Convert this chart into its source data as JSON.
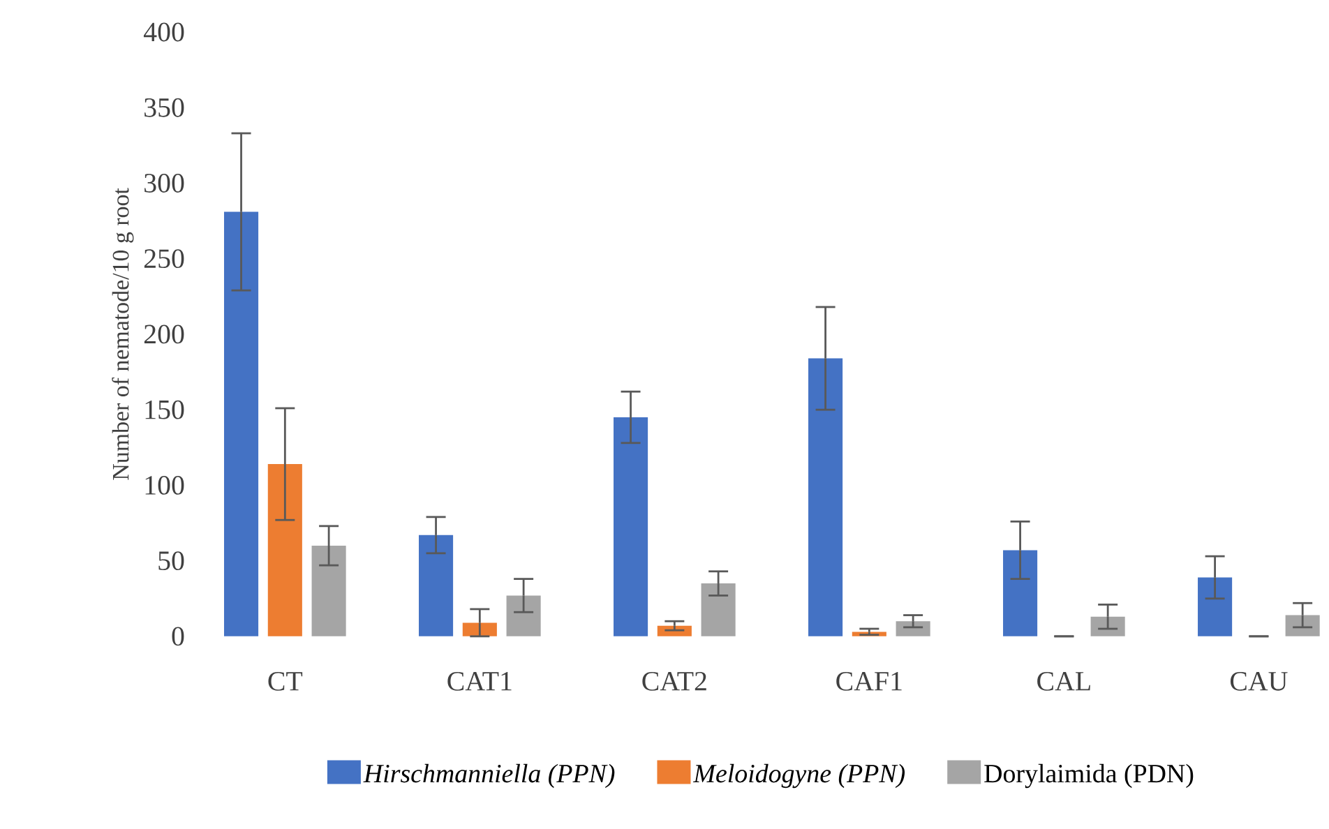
{
  "chart_data": {
    "type": "bar",
    "ylabel": "Number of nematode/10 g root",
    "categories": [
      "CT",
      "CAT1",
      "CAT2",
      "CAF1",
      "CAL",
      "CAU"
    ],
    "series": [
      {
        "name": "*Hirschmanniella (PPN)*",
        "color": "#4472c4",
        "values": [
          281,
          67,
          145,
          184,
          57,
          39
        ],
        "errors": [
          52,
          12,
          17,
          34,
          19,
          14
        ]
      },
      {
        "name": "*Meloidogyne (PPN)*",
        "color": "#ed7d31",
        "values": [
          114,
          9,
          7,
          3,
          0,
          0
        ],
        "errors": [
          37,
          9,
          3,
          2,
          0,
          0
        ]
      },
      {
        "name": "Dorylaimida (PDN)",
        "color": "#a5a5a5",
        "values": [
          60,
          27,
          35,
          10,
          13,
          14
        ],
        "errors": [
          13,
          11,
          8,
          4,
          8,
          8
        ]
      }
    ],
    "ylim": [
      0,
      400
    ],
    "yticks": [
      0,
      50,
      100,
      150,
      200,
      250,
      300,
      350,
      400
    ],
    "legend": "bottom"
  }
}
